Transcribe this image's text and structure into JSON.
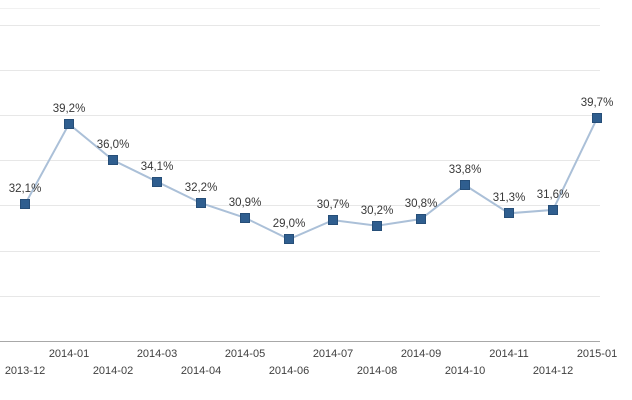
{
  "chart_data": {
    "type": "line",
    "title": "",
    "xlabel": "",
    "ylabel": "",
    "categories": [
      "2013-12",
      "2014-01",
      "2014-02",
      "2014-03",
      "2014-04",
      "2014-05",
      "2014-06",
      "2014-07",
      "2014-08",
      "2014-09",
      "2014-10",
      "2014-11",
      "2014-12",
      "2015-01"
    ],
    "values": [
      32.1,
      39.2,
      36.0,
      34.1,
      32.2,
      30.9,
      29.0,
      30.7,
      30.2,
      30.8,
      33.8,
      31.3,
      31.6,
      39.7
    ],
    "point_labels": [
      "32,1%",
      "39,2%",
      "36,0%",
      "34,1%",
      "32,2%",
      "30,9%",
      "29,0%",
      "30,7%",
      "30,2%",
      "30,8%",
      "33,8%",
      "31,3%",
      "31,6%",
      "39,7%"
    ],
    "ylim": [
      20,
      49.5
    ],
    "gridline_values": [
      24,
      28,
      32,
      36,
      40,
      44,
      48
    ],
    "baseline_value": 20,
    "grid": true,
    "legend_position": "none",
    "x_axis_stagger": true,
    "colors": {
      "marker": "#2f5e8f",
      "marker_border": "#264e78",
      "line": "#abc0d8",
      "gridline": "#e7e7e7",
      "baseline": "#a8a8a8",
      "point_label_text": "#383838",
      "axis_label_text": "#3f3f3f",
      "background": "#ffffff"
    }
  }
}
